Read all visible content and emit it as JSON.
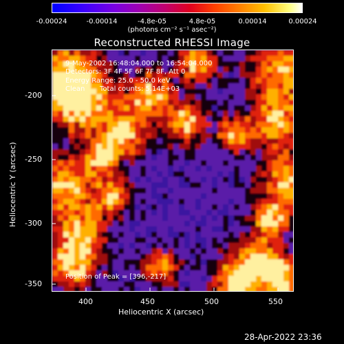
{
  "colorbar": {
    "ticks": [
      "-0.00024",
      "-0.00014",
      "-4.8e-05",
      "4.8e-05",
      "0.00014",
      "0.00024"
    ],
    "units": "(photons cm⁻² s⁻¹ asec⁻²)"
  },
  "title": "Reconstructed RHESSI Image",
  "annotations": {
    "time_range": "9-May-2002 16:48:04.000 to 16:54:04.000",
    "detectors": "Detectors: 3F 4F 5F 6F 7F 8F, Att 0",
    "energy": "Energy Range: 25.0 - 50.0 keV",
    "clean": "Clean",
    "counts": "Total counts: 5.14E+03",
    "peak": "Position of Peak = [396,-217]"
  },
  "axes": {
    "xlabel": "Heliocentric X (arcsec)",
    "ylabel": "Heliocentric Y (arcsec)",
    "xticks": [
      "400",
      "450",
      "500",
      "550"
    ],
    "yticks": [
      "-200",
      "-250",
      "-300",
      "-350"
    ]
  },
  "timestamp": "28-Apr-2022 23:36"
}
